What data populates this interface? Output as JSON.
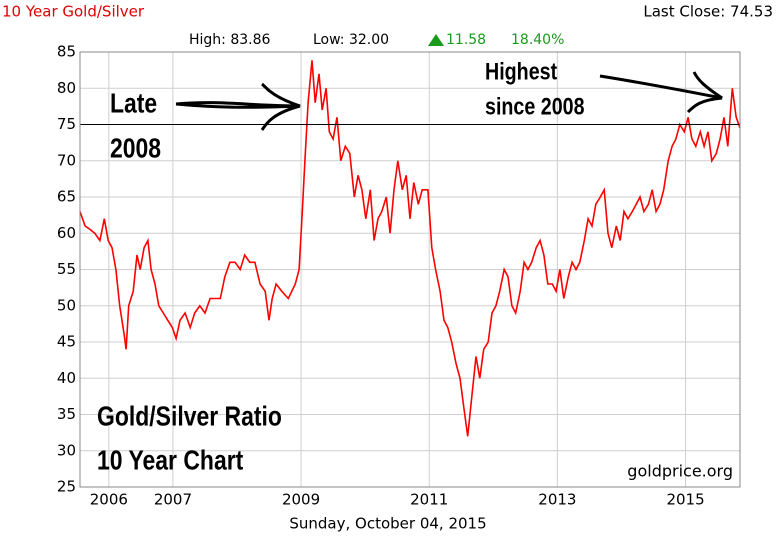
{
  "chart_data": {
    "type": "line",
    "title": "10 Year Gold/Silver",
    "last_close": "Last Close: 74.53",
    "stats": {
      "high": "High: 83.86",
      "low": "Low: 32.00",
      "change": "11.58",
      "change_pct": "18.40%"
    },
    "date_label": "Sunday, October 04, 2015",
    "source": "goldprice.org",
    "annotations": [
      {
        "lines": [
          "Late",
          "2008"
        ]
      },
      {
        "lines": [
          "Highest",
          "since 2008"
        ]
      },
      {
        "lines": [
          "Gold/Silver Ratio",
          "10 Year Chart"
        ]
      }
    ],
    "color": "#ff0000",
    "reference_line": 75,
    "x": [
      2005.55,
      2005.63,
      2005.71,
      2005.78,
      2005.86,
      2005.93,
      2005.99,
      2006.05,
      2006.11,
      2006.17,
      2006.24,
      2006.27,
      2006.31,
      2006.38,
      2006.44,
      2006.49,
      2006.55,
      2006.61,
      2006.66,
      2006.72,
      2006.78,
      2006.85,
      2006.92,
      2006.99,
      2007.05,
      2007.11,
      2007.19,
      2007.27,
      2007.34,
      2007.42,
      2007.5,
      2007.58,
      2007.66,
      2007.74,
      2007.81,
      2007.89,
      2007.97,
      2008.05,
      2008.12,
      2008.2,
      2008.28,
      2008.36,
      2008.44,
      2008.5,
      2008.55,
      2008.61,
      2008.7,
      2008.8,
      2008.91,
      2008.97,
      2009.02,
      2009.06,
      2009.11,
      2009.17,
      2009.22,
      2009.28,
      2009.33,
      2009.39,
      2009.44,
      2009.5,
      2009.56,
      2009.62,
      2009.69,
      2009.76,
      2009.83,
      2009.89,
      2009.95,
      2010.01,
      2010.08,
      2010.14,
      2010.2,
      2010.26,
      2010.33,
      2010.39,
      2010.45,
      2010.51,
      2010.58,
      2010.64,
      2010.7,
      2010.76,
      2010.83,
      2010.89,
      2010.98,
      2011.04,
      2011.1,
      2011.17,
      2011.23,
      2011.29,
      2011.35,
      2011.42,
      2011.48,
      2011.54,
      2011.6,
      2011.67,
      2011.73,
      2011.79,
      2011.85,
      2011.92,
      2011.98,
      2012.04,
      2012.1,
      2012.17,
      2012.23,
      2012.29,
      2012.35,
      2012.42,
      2012.48,
      2012.54,
      2012.6,
      2012.67,
      2012.73,
      2012.79,
      2012.85,
      2012.92,
      2012.98,
      2013.04,
      2013.1,
      2013.17,
      2013.23,
      2013.29,
      2013.35,
      2013.42,
      2013.48,
      2013.54,
      2013.6,
      2013.67,
      2013.73,
      2013.79,
      2013.85,
      2013.92,
      2013.98,
      2014.04,
      2014.1,
      2014.17,
      2014.23,
      2014.29,
      2014.35,
      2014.42,
      2014.48,
      2014.54,
      2014.6,
      2014.66,
      2014.73,
      2014.79,
      2014.85,
      2014.91,
      2014.98,
      2015.04,
      2015.1,
      2015.16,
      2015.23,
      2015.29,
      2015.35,
      2015.41,
      2015.48,
      2015.54,
      2015.6,
      2015.66,
      2015.73,
      2015.79,
      2015.85
    ],
    "values": [
      63,
      61,
      60.5,
      60,
      59,
      62,
      59,
      58,
      55,
      50,
      46,
      44,
      50,
      52,
      57,
      55,
      58,
      59,
      55,
      53,
      50,
      49,
      48,
      47,
      45.5,
      48,
      49,
      47,
      49,
      50,
      49,
      51,
      51,
      51,
      54,
      56,
      56,
      55,
      57,
      56,
      56,
      53,
      52,
      48,
      51,
      53,
      52,
      51,
      53,
      55,
      63,
      70,
      78,
      83.86,
      78,
      82,
      77,
      80,
      74,
      73,
      76,
      70,
      72,
      71,
      65,
      68,
      66,
      62,
      66,
      59,
      62,
      63,
      65,
      60,
      66,
      70,
      66,
      68,
      62,
      67,
      64,
      66,
      66,
      58,
      55,
      52,
      48,
      47,
      45,
      42,
      40,
      36,
      32,
      38,
      43,
      40,
      44,
      45,
      49,
      50,
      52,
      55,
      54,
      50,
      49,
      52,
      56,
      55,
      56,
      58,
      59,
      57,
      53,
      53,
      52,
      55,
      51,
      54,
      56,
      55,
      56,
      59,
      62,
      61,
      64,
      65,
      66,
      60,
      58,
      61,
      59,
      63,
      62,
      63,
      64,
      65,
      63,
      64,
      66,
      63,
      64,
      66,
      70,
      72,
      73,
      75,
      74,
      76,
      73,
      72,
      74,
      72,
      74,
      70,
      71,
      73,
      76,
      72,
      80,
      76,
      74.53
    ],
    "xlim": [
      2005.55,
      2015.85
    ],
    "xticks": [
      2006,
      2007,
      2009,
      2011,
      2013,
      2015
    ],
    "ylim": [
      25,
      85
    ],
    "yticks": [
      25,
      30,
      35,
      40,
      45,
      50,
      55,
      60,
      65,
      70,
      75,
      80,
      85
    ],
    "grid": true
  }
}
